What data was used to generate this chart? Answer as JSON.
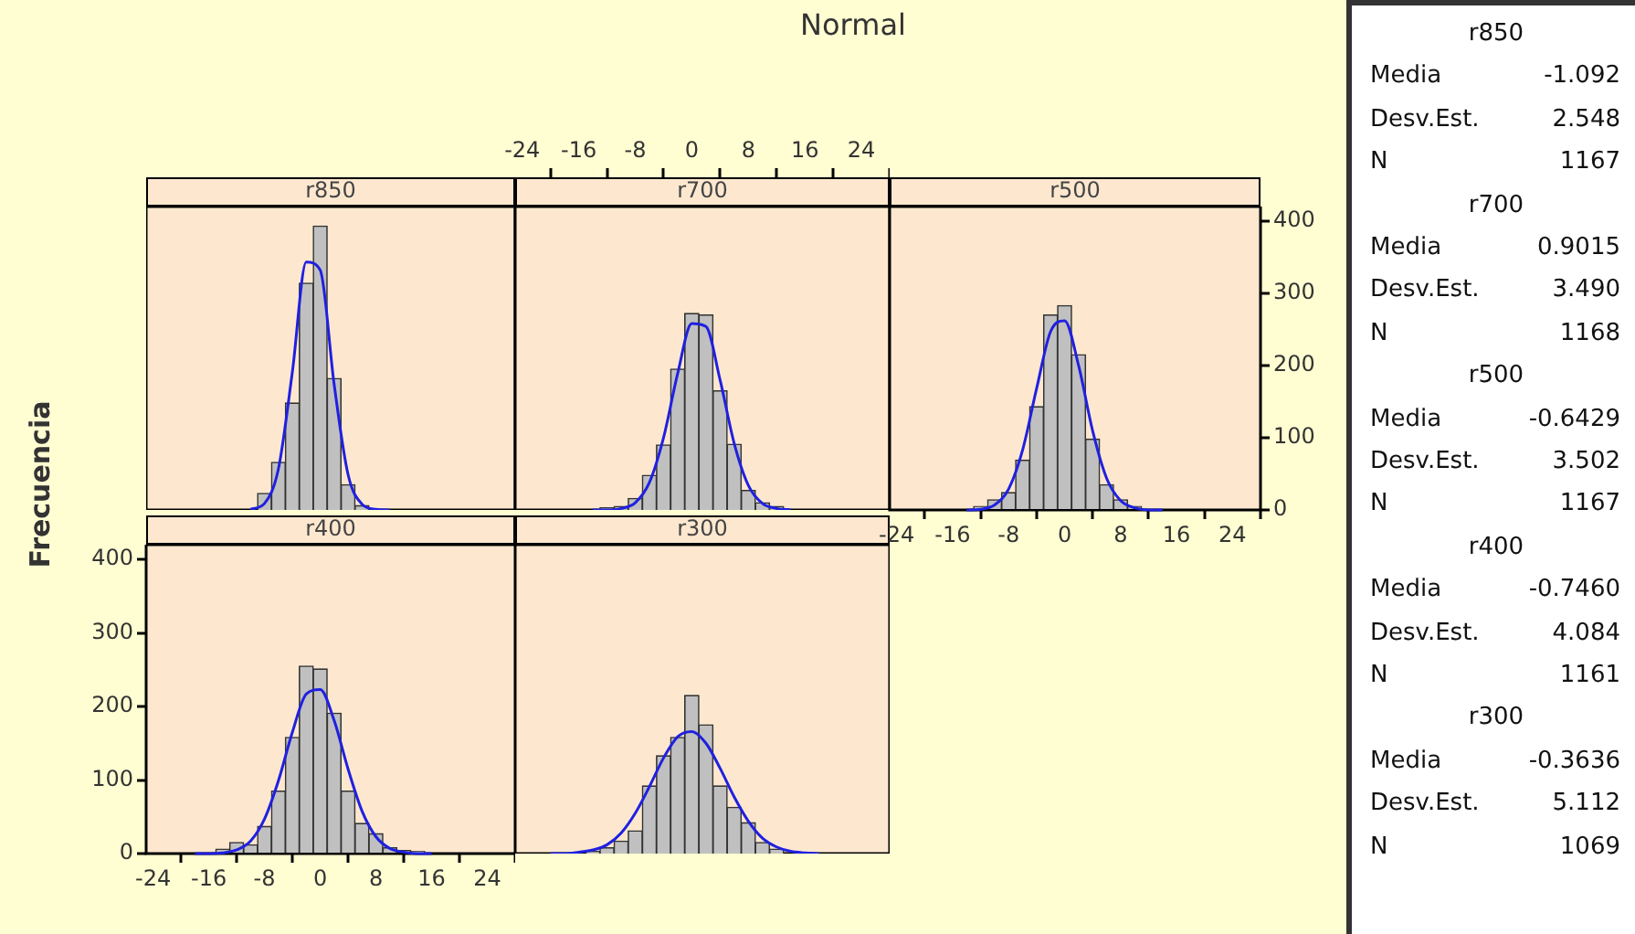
{
  "chart_data": [
    {
      "type": "histogram",
      "title": "r850",
      "annotations": [
        "Normal"
      ],
      "xlim": [
        -25,
        28
      ],
      "ylim": [
        0,
        420
      ],
      "tick_labels": false,
      "series": [
        {
          "type": "histogram",
          "bins": [
            -9,
            -7,
            -5,
            -3,
            -1,
            1,
            3,
            5,
            7
          ],
          "values": [
            23,
            66,
            148,
            314,
            393,
            182,
            35,
            6
          ],
          "color": "#c0c0c0"
        },
        {
          "type": "line",
          "x": [
            -10,
            -8,
            -6,
            -4,
            -2,
            0,
            2,
            4,
            6,
            8,
            10
          ],
          "values": [
            1,
            9,
            57,
            191,
            343,
            332,
            174,
            49,
            8,
            1,
            0
          ],
          "color": "#2020e0"
        }
      ]
    },
    {
      "type": "histogram",
      "title": "r700",
      "xlim": [
        -25,
        28
      ],
      "ylim": [
        0,
        420
      ],
      "xticks": [
        -24,
        -16,
        -8,
        0,
        8,
        16,
        24
      ],
      "tick_labels": "x",
      "series": [
        {
          "type": "histogram",
          "bins": [
            -13,
            -11,
            -9,
            -7,
            -5,
            -3,
            -1,
            1,
            3,
            5,
            7,
            9,
            11,
            13
          ],
          "values": [
            3,
            5,
            16,
            48,
            90,
            195,
            272,
            270,
            165,
            91,
            27,
            10,
            5
          ],
          "color": "#c0c0c0"
        },
        {
          "type": "line",
          "x": [
            -14,
            -12,
            -10,
            -8,
            -6,
            -4,
            -2,
            0,
            2,
            4,
            6,
            8,
            10,
            12,
            14
          ],
          "values": [
            0,
            0,
            2,
            10,
            38,
            100,
            189,
            258,
            254,
            180,
            92,
            34,
            9,
            2,
            0
          ],
          "color": "#2020e0"
        }
      ]
    },
    {
      "type": "histogram",
      "title": "r500",
      "xlim": [
        -25,
        28
      ],
      "ylim": [
        0,
        420
      ],
      "xticks": [
        -24,
        -16,
        -8,
        0,
        8,
        16,
        24
      ],
      "yticks": [
        0,
        100,
        200,
        300,
        400
      ],
      "series": [
        {
          "type": "histogram",
          "bins": [
            -13,
            -11,
            -9,
            -7,
            -5,
            -3,
            -1,
            1,
            3,
            5,
            7,
            9,
            11
          ],
          "values": [
            5,
            14,
            24,
            69,
            143,
            270,
            283,
            215,
            98,
            35,
            14,
            5
          ],
          "color": "#c0c0c0"
        },
        {
          "type": "line",
          "x": [
            -14,
            -12,
            -10,
            -8,
            -6,
            -4,
            -2,
            0,
            2,
            4,
            6,
            8,
            10,
            12,
            14
          ],
          "values": [
            0,
            1,
            7,
            29,
            83,
            168,
            247,
            262,
            200,
            110,
            44,
            13,
            3,
            0,
            0
          ],
          "color": "#2020e0"
        }
      ]
    },
    {
      "type": "histogram",
      "title": "r400",
      "ylabel": "Frecuencia",
      "xlim": [
        -25,
        28
      ],
      "ylim": [
        0,
        420
      ],
      "xticks": [
        -24,
        -16,
        -8,
        0,
        8,
        16,
        24
      ],
      "yticks": [
        0,
        100,
        200,
        300,
        400
      ],
      "series": [
        {
          "type": "histogram",
          "bins": [
            -15,
            -13,
            -11,
            -9,
            -7,
            -5,
            -3,
            -1,
            1,
            3,
            5,
            7,
            9,
            11,
            13,
            15
          ],
          "values": [
            6,
            15,
            12,
            37,
            85,
            158,
            255,
            251,
            191,
            85,
            41,
            27,
            8,
            4,
            3
          ],
          "color": "#c0c0c0"
        },
        {
          "type": "line",
          "x": [
            -18,
            -16,
            -14,
            -12,
            -10,
            -8,
            -6,
            -4,
            -2,
            0,
            2,
            4,
            6,
            8,
            10,
            12,
            14,
            16
          ],
          "values": [
            0,
            0,
            1,
            5,
            17,
            47,
            99,
            165,
            217,
            223,
            181,
            115,
            58,
            23,
            7,
            2,
            0,
            0
          ],
          "color": "#2020e0"
        }
      ]
    },
    {
      "type": "histogram",
      "title": "r300",
      "xlim": [
        -25,
        28
      ],
      "ylim": [
        0,
        420
      ],
      "tick_labels": false,
      "series": [
        {
          "type": "histogram",
          "bins": [
            -15,
            -13,
            -11,
            -9,
            -7,
            -5,
            -3,
            -1,
            1,
            3,
            5,
            7,
            9,
            11,
            13
          ],
          "values": [
            3,
            8,
            17,
            31,
            92,
            133,
            158,
            215,
            175,
            92,
            63,
            42,
            15,
            6
          ],
          "color": "#c0c0c0"
        },
        {
          "type": "line",
          "x": [
            -20,
            -18,
            -16,
            -14,
            -12,
            -10,
            -8,
            -6,
            -4,
            -2,
            0,
            2,
            4,
            6,
            8,
            10,
            12,
            14,
            16,
            18
          ],
          "values": [
            0,
            0,
            2,
            5,
            12,
            28,
            55,
            91,
            130,
            159,
            166,
            150,
            116,
            77,
            44,
            21,
            9,
            3,
            1,
            0
          ],
          "color": "#2020e0"
        }
      ]
    },
    {
      "type": "other",
      "annotations": [
        "r850",
        "Media",
        "-1.092",
        "Desv.Est.",
        "2.548",
        "N",
        "1167",
        "r700",
        "Media",
        "0.9015",
        "Desv.Est.",
        "3.490",
        "N",
        "1168",
        "r500",
        "Media",
        "-0.6429",
        "Desv.Est.",
        "3.502",
        "N",
        "1167",
        "r400",
        "Media",
        "-0.7460",
        "Desv.Est.",
        "4.084",
        "N",
        "1161",
        "r300",
        "Media",
        "-0.3636",
        "Desv.Est.",
        "5.112",
        "N",
        "1069"
      ]
    }
  ]
}
